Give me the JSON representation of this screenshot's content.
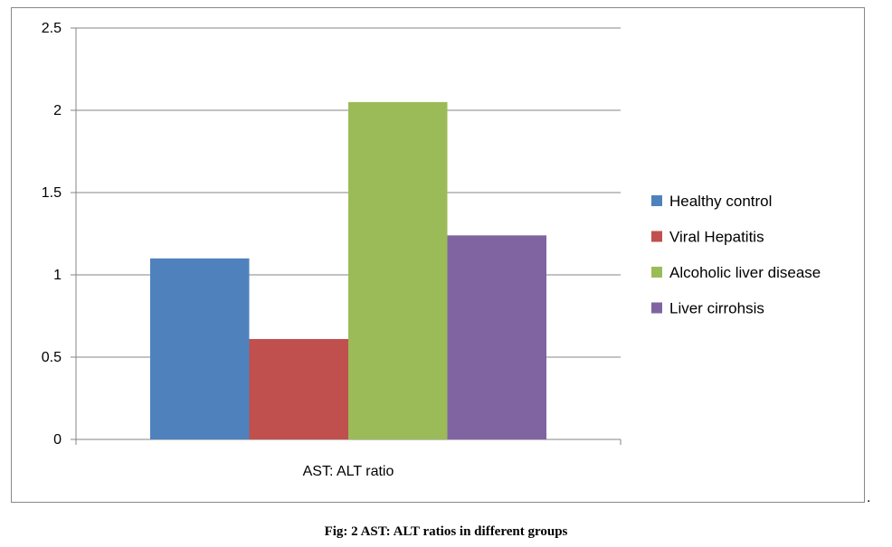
{
  "chart_data": {
    "type": "bar",
    "title": "",
    "categories": [
      "AST:  ALT ratio"
    ],
    "series": [
      {
        "name": "Healthy control",
        "values": [
          1.1
        ],
        "color": "#4f81bd"
      },
      {
        "name": "Viral Hepatitis",
        "values": [
          0.61
        ],
        "color": "#c0504d"
      },
      {
        "name": "Alcoholic liver disease",
        "values": [
          2.05
        ],
        "color": "#9bbb59"
      },
      {
        "name": "Liver cirrohsis",
        "values": [
          1.24
        ],
        "color": "#8064a2"
      }
    ],
    "xlabel": "",
    "ylabel": "",
    "ylim": [
      0,
      2.5
    ],
    "yticks": [
      0,
      0.5,
      1,
      1.5,
      2,
      2.5
    ],
    "ytick_labels": [
      "0",
      "0.5",
      "1",
      "1.5",
      "2",
      "2.5"
    ],
    "grid": true,
    "legend_position": "right"
  },
  "caption": "Fig: 2 AST: ALT ratios in different groups",
  "trailing_mark": "."
}
